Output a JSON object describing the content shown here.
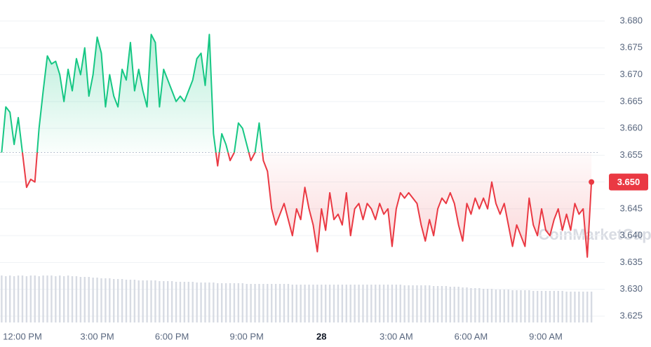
{
  "chart_data": {
    "type": "line",
    "x": [
      -50,
      -40,
      -30,
      -20,
      -10,
      0,
      10,
      20,
      30,
      40,
      50,
      60,
      70,
      80,
      90,
      100,
      110,
      120,
      130,
      140,
      150,
      160,
      170,
      180,
      190,
      200,
      210,
      220,
      230,
      240,
      250,
      260,
      270,
      280,
      290,
      300,
      310,
      320,
      330,
      340,
      350,
      360,
      370,
      380,
      390,
      400,
      410,
      420,
      430,
      440,
      450,
      460,
      470,
      480,
      490,
      500,
      510,
      520,
      530,
      540,
      550,
      560,
      570,
      580,
      590,
      600,
      610,
      620,
      630,
      640,
      650,
      660,
      670,
      680,
      690,
      700,
      710,
      720,
      730,
      740,
      750,
      760,
      770,
      780,
      790,
      800,
      810,
      820,
      830,
      840,
      850,
      860,
      870,
      880,
      890,
      900,
      910,
      920,
      930,
      940,
      950,
      960,
      970,
      980,
      990,
      1000,
      1010,
      1020,
      1030,
      1040,
      1050,
      1060,
      1070,
      1080,
      1090,
      1100,
      1110,
      1120,
      1130,
      1140,
      1150,
      1160,
      1170,
      1180,
      1190,
      1200,
      1210,
      1220,
      1230,
      1240,
      1250,
      1260,
      1270,
      1280,
      1290,
      1300,
      1310,
      1320,
      1330,
      1340,
      1350,
      1360,
      1370
    ],
    "values": [
      3.6555,
      3.664,
      3.663,
      3.657,
      3.662,
      3.6555,
      3.649,
      3.6505,
      3.65,
      3.66,
      3.667,
      3.6735,
      3.672,
      3.6725,
      3.67,
      3.665,
      3.671,
      3.667,
      3.673,
      3.67,
      3.675,
      3.666,
      3.67,
      3.677,
      3.674,
      3.664,
      3.67,
      3.666,
      3.664,
      3.671,
      3.669,
      3.676,
      3.667,
      3.671,
      3.667,
      3.664,
      3.6775,
      3.676,
      3.664,
      3.671,
      3.669,
      3.667,
      3.665,
      3.666,
      3.665,
      3.667,
      3.669,
      3.673,
      3.674,
      3.668,
      3.6775,
      3.659,
      3.653,
      3.659,
      3.657,
      3.654,
      3.6555,
      3.661,
      3.66,
      3.657,
      3.654,
      3.6555,
      3.661,
      3.654,
      3.652,
      3.645,
      3.642,
      3.644,
      3.646,
      3.643,
      3.64,
      3.645,
      3.643,
      3.649,
      3.645,
      3.642,
      3.637,
      3.645,
      3.641,
      3.648,
      3.643,
      3.644,
      3.642,
      3.648,
      3.64,
      3.645,
      3.646,
      3.643,
      3.646,
      3.645,
      3.643,
      3.646,
      3.644,
      3.645,
      3.638,
      3.645,
      3.648,
      3.647,
      3.648,
      3.647,
      3.646,
      3.642,
      3.639,
      3.643,
      3.64,
      3.645,
      3.647,
      3.646,
      3.648,
      3.646,
      3.642,
      3.639,
      3.646,
      3.644,
      3.647,
      3.645,
      3.647,
      3.645,
      3.65,
      3.646,
      3.644,
      3.646,
      3.642,
      3.638,
      3.642,
      3.64,
      3.638,
      3.647,
      3.642,
      3.64,
      3.645,
      3.641,
      3.64,
      3.643,
      3.645,
      3.641,
      3.644,
      3.641,
      3.646,
      3.644,
      3.645,
      3.636,
      3.65
    ],
    "volume": [
      67,
      66,
      67,
      66,
      67,
      67,
      66,
      67,
      67,
      66,
      67,
      67,
      67,
      66,
      67,
      66,
      67,
      66,
      66,
      65,
      65,
      65,
      64,
      64,
      63,
      63,
      63,
      62,
      62,
      62,
      61,
      61,
      61,
      60,
      60,
      60,
      60,
      60,
      59,
      59,
      59,
      59,
      58,
      58,
      58,
      58,
      58,
      57,
      57,
      57,
      57,
      57,
      56,
      56,
      56,
      56,
      56,
      56,
      56,
      55,
      55,
      55,
      55,
      55,
      55,
      55,
      55,
      55,
      55,
      55,
      54,
      54,
      54,
      54,
      54,
      54,
      54,
      54,
      54,
      54,
      54,
      54,
      54,
      54,
      54,
      54,
      54,
      54,
      54,
      54,
      54,
      54,
      54,
      54,
      54,
      54,
      54,
      53,
      53,
      53,
      53,
      53,
      53,
      53,
      52,
      52,
      52,
      52,
      51,
      51,
      51,
      50,
      50,
      49,
      49,
      49,
      48,
      48,
      48,
      47,
      47,
      47,
      47,
      46,
      46,
      46,
      46,
      46,
      45,
      45,
      45,
      45,
      45,
      45,
      45,
      45,
      44,
      44,
      44,
      44,
      44,
      44,
      44
    ],
    "baseline": 3.6555,
    "up_color": "#16c784",
    "down_color": "#ea3943",
    "volume_color": "#d7dbe3",
    "last_price": {
      "value": 3.65,
      "label": "3.650"
    },
    "watermark": "CoinMarketCap",
    "xlim": [
      -54,
      1385
    ],
    "xticks": [
      {
        "value": 0,
        "label": "12:00 PM"
      },
      {
        "value": 180,
        "label": "3:00 PM"
      },
      {
        "value": 360,
        "label": "6:00 PM"
      },
      {
        "value": 540,
        "label": "9:00 PM"
      },
      {
        "value": 720,
        "label": "28"
      },
      {
        "value": 900,
        "label": "3:00 AM"
      },
      {
        "value": 1080,
        "label": "6:00 AM"
      },
      {
        "value": 1260,
        "label": "9:00 AM"
      }
    ],
    "ylim": [
      3.625,
      3.68
    ],
    "yticks": [
      {
        "value": 3.68,
        "label": "3.680"
      },
      {
        "value": 3.675,
        "label": "3.675"
      },
      {
        "value": 3.67,
        "label": "3.670"
      },
      {
        "value": 3.665,
        "label": "3.665"
      },
      {
        "value": 3.66,
        "label": "3.660"
      },
      {
        "value": 3.655,
        "label": "3.655"
      },
      {
        "value": 3.65,
        "label": "3.650"
      },
      {
        "value": 3.645,
        "label": "3.645"
      },
      {
        "value": 3.64,
        "label": "3.640"
      },
      {
        "value": 3.635,
        "label": "3.635"
      },
      {
        "value": 3.63,
        "label": "3.630"
      },
      {
        "value": 3.625,
        "label": "3.625"
      }
    ],
    "grid": true
  }
}
